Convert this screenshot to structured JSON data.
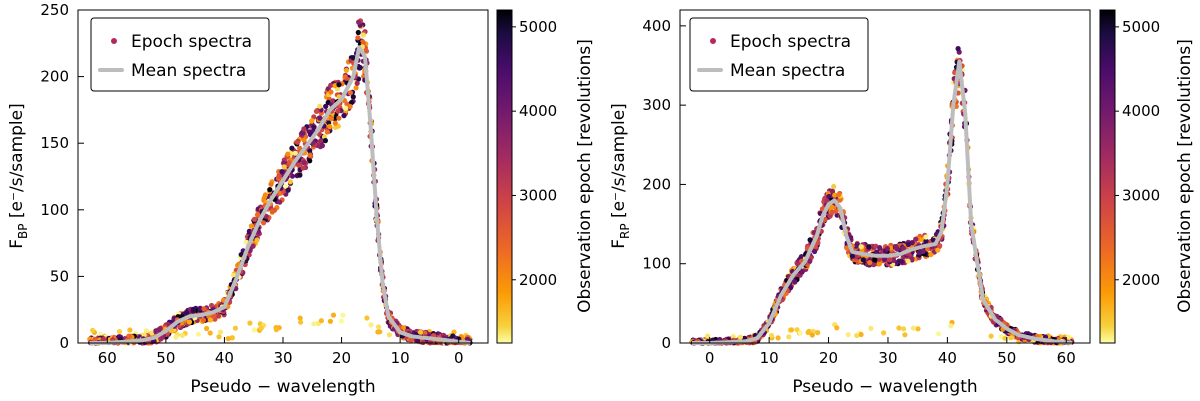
{
  "chart_data": [
    {
      "type": "scatter",
      "panel": "BP",
      "ylabel": "F_BP [e⁻/s/sample]",
      "ylabel_main": "F",
      "ylabel_sub": "BP",
      "ylabel_rest": "[e⁻/s/sample]",
      "xlabel": "Pseudo − wavelength",
      "xlim": [
        65,
        -5
      ],
      "ylim": [
        0,
        250
      ],
      "xticks": [
        60,
        50,
        40,
        30,
        20,
        10,
        0
      ],
      "yticks": [
        0,
        50,
        100,
        150,
        200,
        250
      ],
      "legend": [
        "Epoch spectra",
        "Mean spectra"
      ],
      "legend_position": "top-left",
      "colorbar_label": "Observation epoch [revolutions]",
      "colorbar_range": [
        1250,
        5200
      ],
      "colorbar_ticks": [
        2000,
        3000,
        4000,
        5000
      ],
      "series": [
        {
          "name": "Mean spectra",
          "x": [
            63,
            60,
            57,
            54,
            52,
            50,
            48,
            46,
            44,
            42,
            40,
            38,
            36,
            34,
            32,
            30,
            28,
            26,
            24,
            22,
            20,
            18,
            17,
            16,
            15,
            14,
            13,
            12,
            10,
            8,
            6,
            4,
            2,
            0,
            -2
          ],
          "values": [
            0,
            0,
            1,
            2,
            4,
            9,
            16,
            20,
            21,
            23,
            27,
            48,
            72,
            92,
            108,
            122,
            136,
            148,
            160,
            175,
            183,
            200,
            222,
            215,
            160,
            95,
            45,
            20,
            8,
            5,
            4,
            3,
            2,
            1,
            0
          ]
        }
      ]
    },
    {
      "type": "scatter",
      "panel": "RP",
      "ylabel": "F_RP [e⁻/s/sample]",
      "ylabel_main": "F",
      "ylabel_sub": "RP",
      "ylabel_rest": "[e⁻/s/sample]",
      "xlabel": "Pseudo − wavelength",
      "xlim": [
        -5,
        64
      ],
      "ylim": [
        0,
        420
      ],
      "xticks": [
        0,
        10,
        20,
        30,
        40,
        50,
        60
      ],
      "yticks": [
        0,
        100,
        200,
        300,
        400
      ],
      "legend": [
        "Epoch spectra",
        "Mean spectra"
      ],
      "legend_position": "top-left",
      "colorbar_label": "Observation epoch [revolutions]",
      "colorbar_range": [
        1250,
        5200
      ],
      "colorbar_ticks": [
        2000,
        3000,
        4000,
        5000
      ],
      "series": [
        {
          "name": "Mean spectra",
          "x": [
            -3,
            0,
            3,
            6,
            8,
            10,
            12,
            14,
            16,
            18,
            19,
            20,
            21,
            22,
            23,
            24,
            26,
            28,
            30,
            32,
            34,
            36,
            38,
            39,
            40,
            41,
            42,
            43,
            44,
            46,
            48,
            50,
            52,
            55,
            58,
            61
          ],
          "values": [
            0,
            0,
            1,
            2,
            6,
            25,
            60,
            85,
            102,
            135,
            160,
            175,
            180,
            170,
            135,
            115,
            112,
            110,
            110,
            112,
            118,
            122,
            125,
            140,
            200,
            300,
            355,
            290,
            150,
            55,
            30,
            18,
            10,
            5,
            2,
            0
          ]
        }
      ]
    }
  ]
}
